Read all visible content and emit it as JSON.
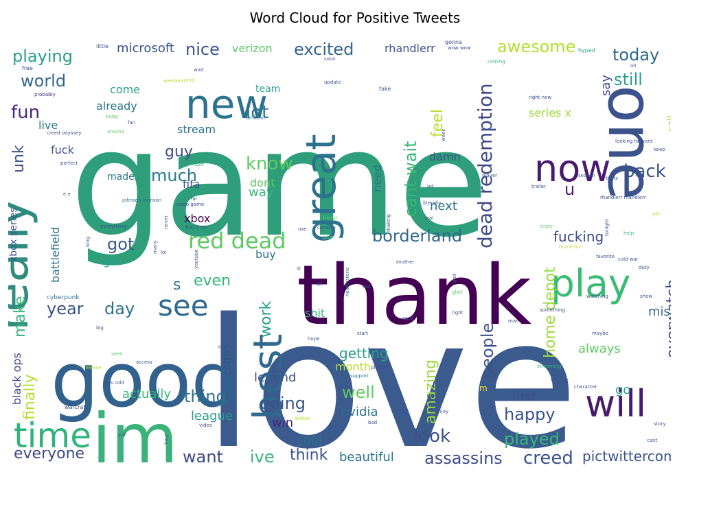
{
  "title": "Word Cloud for Positive Tweets",
  "palette": [
    "#440154",
    "#3b528b",
    "#21918c",
    "#2a9d8f",
    "#5ec962",
    "#9bd93c",
    "#fde725",
    "#31688e",
    "#35b779"
  ],
  "words": [
    {
      "text": "game",
      "color": "#2f9e7a"
    },
    {
      "text": "love",
      "color": "#3b5a8d"
    },
    {
      "text": "thank",
      "color": "#440154"
    },
    {
      "text": "good",
      "color": "#33618d"
    },
    {
      "text": "im",
      "color": "#3ab27a"
    },
    {
      "text": "one",
      "color": "#3b528b"
    },
    {
      "text": "new",
      "color": "#2c728e"
    },
    {
      "text": "really",
      "color": "#2e8b7e"
    },
    {
      "text": "great",
      "color": "#2c728e"
    },
    {
      "text": "best",
      "color": "#31688e"
    },
    {
      "text": "play",
      "color": "#3cbb75"
    },
    {
      "text": "now",
      "color": "#481b6d"
    },
    {
      "text": "time",
      "color": "#2fb47c"
    },
    {
      "text": "will",
      "color": "#481a6c"
    },
    {
      "text": "see",
      "color": "#306a8e"
    },
    {
      "text": "red dead",
      "color": "#5ec962"
    },
    {
      "text": "dead redemption",
      "color": "#3e4a89"
    },
    {
      "text": "playing",
      "color": "#2a9d8f"
    },
    {
      "text": "excited",
      "color": "#33638d"
    },
    {
      "text": "awesome",
      "color": "#b5de2b"
    },
    {
      "text": "today",
      "color": "#31688e"
    },
    {
      "text": "still",
      "color": "#2a9d8f"
    },
    {
      "text": "nice",
      "color": "#3b528b"
    },
    {
      "text": "fun",
      "color": "#482878"
    },
    {
      "text": "world",
      "color": "#31688e"
    },
    {
      "text": "know",
      "color": "#5ec962"
    },
    {
      "text": "lot",
      "color": "#2c728e"
    },
    {
      "text": "cant wait",
      "color": "#35b779"
    },
    {
      "text": "back",
      "color": "#3b528b"
    },
    {
      "text": "borderland",
      "color": "#31688e"
    },
    {
      "text": "much",
      "color": "#2a788e"
    },
    {
      "text": "got",
      "color": "#39568c"
    },
    {
      "text": "feel",
      "color": "#b5de2b"
    },
    {
      "text": "guy",
      "color": "#3e4a89"
    },
    {
      "text": "u",
      "color": "#481a6c"
    },
    {
      "text": "finally",
      "color": "#b5de2b"
    },
    {
      "text": "make",
      "color": "#35b779"
    },
    {
      "text": "unk",
      "color": "#3b528b"
    },
    {
      "text": "year",
      "color": "#3b528b"
    },
    {
      "text": "day",
      "color": "#2c728e"
    },
    {
      "text": "even",
      "color": "#35b779"
    },
    {
      "text": "s",
      "color": "#2a788e"
    },
    {
      "text": "work",
      "color": "#2a9d8f"
    },
    {
      "text": "amazing",
      "color": "#9bd93c"
    },
    {
      "text": "people",
      "color": "#3b528b"
    },
    {
      "text": "home depot",
      "color": "#9bd93c"
    },
    {
      "text": "overwatch",
      "color": "#3e4a89"
    },
    {
      "text": "thing",
      "color": "#2c728e"
    },
    {
      "text": "going",
      "color": "#3b528b"
    },
    {
      "text": "well",
      "color": "#5ec962"
    },
    {
      "text": "look",
      "color": "#3b528b"
    },
    {
      "text": "happy",
      "color": "#3b528b"
    },
    {
      "text": "played",
      "color": "#35b779"
    },
    {
      "text": "assassins",
      "color": "#3e4a89"
    },
    {
      "text": "creed",
      "color": "#3b528b"
    },
    {
      "text": "everyone",
      "color": "#3e4a89"
    },
    {
      "text": "want",
      "color": "#3e4a89"
    },
    {
      "text": "ive",
      "color": "#35b779"
    },
    {
      "text": "think",
      "color": "#3b528b"
    },
    {
      "text": "beautiful",
      "color": "#2c728e"
    },
    {
      "text": "pictwittercom",
      "color": "#3b528b"
    },
    {
      "text": "fucking",
      "color": "#3e4a89"
    },
    {
      "text": "getting",
      "color": "#2a9d8f"
    },
    {
      "text": "nvidia",
      "color": "#2c728e"
    },
    {
      "text": "league",
      "color": "#2a9d8f"
    },
    {
      "text": "actually",
      "color": "#35b779"
    },
    {
      "text": "cool",
      "color": "#2c728e"
    },
    {
      "text": "win",
      "color": "#482878"
    },
    {
      "text": "first",
      "color": "#3b528b"
    },
    {
      "text": "always",
      "color": "#5ec962"
    },
    {
      "text": "miss",
      "color": "#31688e"
    },
    {
      "text": "legend",
      "color": "#3b528b"
    },
    {
      "text": "month",
      "color": "#b5de2b"
    },
    {
      "text": "next",
      "color": "#2c728e"
    },
    {
      "text": "microsoft",
      "color": "#3b528b"
    },
    {
      "text": "verizon",
      "color": "#5ec962"
    },
    {
      "text": "rhandlerr",
      "color": "#3b528b"
    },
    {
      "text": "say",
      "color": "#3e4a89"
    },
    {
      "text": "battlefield",
      "color": "#2c728e"
    },
    {
      "text": "xbox series",
      "color": "#3b528b"
    },
    {
      "text": "black ops",
      "color": "#3e4a89"
    },
    {
      "text": "live",
      "color": "#2a788e"
    },
    {
      "text": "fuck",
      "color": "#3b528b"
    },
    {
      "text": "stream",
      "color": "#2c728e"
    },
    {
      "text": "already",
      "color": "#2c728e"
    },
    {
      "text": "come",
      "color": "#2a9d8f"
    },
    {
      "text": "team",
      "color": "#2a9d8f"
    },
    {
      "text": "gta",
      "color": "#2a9d8f"
    },
    {
      "text": "fifa",
      "color": "#3b528b"
    },
    {
      "text": "xbox",
      "color": "#440154"
    },
    {
      "text": "made",
      "color": "#2c728e"
    },
    {
      "text": "dont",
      "color": "#5ec962"
    },
    {
      "text": "way",
      "color": "#35b779"
    },
    {
      "text": "need",
      "color": "#2c728e"
    },
    {
      "text": "damn",
      "color": "#3b528b"
    },
    {
      "text": "buy",
      "color": "#2c728e"
    },
    {
      "text": "shit",
      "color": "#35b779"
    },
    {
      "text": "csgo",
      "color": "#3b528b"
    },
    {
      "text": "series x",
      "color": "#9bd93c"
    },
    {
      "text": "call",
      "color": "#9bd93c"
    },
    {
      "text": "go",
      "color": "#2a9d8f"
    },
    {
      "text": "cyberpunk",
      "color": "#2c728e"
    },
    {
      "text": "warcraft",
      "color": "#3b528b"
    },
    {
      "text": "hearthstone",
      "color": "#2c728e"
    },
    {
      "text": "little",
      "color": "#3b528b"
    },
    {
      "text": "soon",
      "color": "#3b528b"
    },
    {
      "text": "gonna",
      "color": "#3e4a89"
    },
    {
      "text": "hyped",
      "color": "#2a9d8f"
    },
    {
      "text": "free",
      "color": "#3b528b"
    },
    {
      "text": "probably",
      "color": "#482878"
    },
    {
      "text": "wait",
      "color": "#3b528b"
    },
    {
      "text": "update",
      "color": "#3b528b"
    },
    {
      "text": "take",
      "color": "#3b528b"
    },
    {
      "text": "coming",
      "color": "#35b779"
    },
    {
      "text": "weekend",
      "color": "#b5de2b"
    },
    {
      "text": "and",
      "color": "#b5de2b"
    },
    {
      "text": "pubg",
      "color": "#5ec962"
    },
    {
      "text": "fan",
      "color": "#3b528b"
    },
    {
      "text": "around",
      "color": "#5ec962"
    },
    {
      "text": "amazon",
      "color": "#2c728e"
    },
    {
      "text": "creed odyssey",
      "color": "#3b528b"
    },
    {
      "text": "perfect",
      "color": "#3b528b"
    },
    {
      "text": "night",
      "color": "#35b779"
    },
    {
      "text": "right now",
      "color": "#3b528b"
    },
    {
      "text": "looking forward",
      "color": "#3b528b"
    },
    {
      "text": "keep",
      "color": "#3b528b"
    },
    {
      "text": "johnson johnson",
      "color": "#2c728e"
    },
    {
      "text": "video game",
      "color": "#3b528b"
    },
    {
      "text": "first time",
      "color": "#3b528b"
    },
    {
      "text": "everything",
      "color": "#3b528b"
    },
    {
      "text": "friend",
      "color": "#5ec962"
    },
    {
      "text": "console",
      "color": "#3b528b"
    },
    {
      "text": "real",
      "color": "#3b528b"
    },
    {
      "text": "give",
      "color": "#5ec962"
    },
    {
      "text": "player",
      "color": "#3b528b"
    },
    {
      "text": "trailer",
      "color": "#3b528b"
    },
    {
      "text": "season",
      "color": "#3b528b"
    },
    {
      "text": "thats",
      "color": "#3b528b"
    },
    {
      "text": "rhandlerr rhandlerr",
      "color": "#3b528b"
    },
    {
      "text": "yet",
      "color": "#b5de2b"
    },
    {
      "text": "help",
      "color": "#35b779"
    },
    {
      "text": "tonight",
      "color": "#3b528b"
    },
    {
      "text": "crazy",
      "color": "#5ec962"
    },
    {
      "text": "much fun",
      "color": "#b5de2b"
    },
    {
      "text": "favorite",
      "color": "#3b528b"
    },
    {
      "text": "cold war",
      "color": "#3b528b"
    },
    {
      "text": "duty",
      "color": "#3b528b"
    },
    {
      "text": "watching",
      "color": "#3b528b"
    },
    {
      "text": "show",
      "color": "#3b528b"
    },
    {
      "text": "another",
      "color": "#3b528b"
    },
    {
      "text": "last",
      "color": "#3b528b"
    },
    {
      "text": "god",
      "color": "#3b528b"
    },
    {
      "text": "glad",
      "color": "#5ec962"
    },
    {
      "text": "pc",
      "color": "#3b528b"
    },
    {
      "text": "ill",
      "color": "#3b528b"
    },
    {
      "text": "card",
      "color": "#3b528b"
    },
    {
      "text": "right",
      "color": "#3b528b"
    },
    {
      "text": "something",
      "color": "#3b528b"
    },
    {
      "text": "maybe",
      "color": "#3b528b"
    },
    {
      "text": "hope",
      "color": "#3b528b"
    },
    {
      "text": "start",
      "color": "#3b528b"
    },
    {
      "text": "top",
      "color": "#3b528b"
    },
    {
      "text": "seen",
      "color": "#5ec962"
    },
    {
      "text": "release",
      "color": "#b5de2b"
    },
    {
      "text": "big",
      "color": "#3b528b"
    },
    {
      "text": "access",
      "color": "#3b528b"
    },
    {
      "text": "ops cold",
      "color": "#3b528b"
    },
    {
      "text": "support",
      "color": "#2c728e"
    },
    {
      "text": "please",
      "color": "#3b528b"
    },
    {
      "text": "part",
      "color": "#3b528b"
    },
    {
      "text": "enjoy",
      "color": "#3b528b"
    },
    {
      "text": "better",
      "color": "#b5de2b"
    },
    {
      "text": "bad",
      "color": "#3b528b"
    },
    {
      "text": "streaming",
      "color": "#35b779"
    },
    {
      "text": "fortnite",
      "color": "#3b528b"
    },
    {
      "text": "character",
      "color": "#3b528b"
    },
    {
      "text": "story",
      "color": "#3b528b"
    },
    {
      "text": "cant",
      "color": "#3b528b"
    },
    {
      "text": "yall",
      "color": "#3b528b"
    },
    {
      "text": "hour",
      "color": "#3b528b"
    },
    {
      "text": "video",
      "color": "#3b528b"
    },
    {
      "text": "never",
      "color": "#3b528b"
    },
    {
      "text": "many",
      "color": "#3b528b"
    },
    {
      "text": "lol",
      "color": "#3b528b"
    },
    {
      "text": "youtube",
      "color": "#3b528b"
    },
    {
      "text": "long",
      "color": "#3b528b"
    },
    {
      "text": "far",
      "color": "#3b528b"
    },
    {
      "text": "e e",
      "color": "#3b528b"
    },
    {
      "text": "use",
      "color": "#3b528b"
    },
    {
      "text": "making",
      "color": "#3b528b"
    },
    {
      "text": "week",
      "color": "#3b528b"
    },
    {
      "text": "let",
      "color": "#3b528b"
    },
    {
      "text": "literally",
      "color": "#3b528b"
    },
    {
      "text": "oh",
      "color": "#3b528b"
    },
    {
      "text": "wow wow",
      "color": "#3b528b"
    },
    {
      "text": "man",
      "color": "#3b528b"
    },
    {
      "text": "m",
      "color": "#fde725"
    }
  ]
}
